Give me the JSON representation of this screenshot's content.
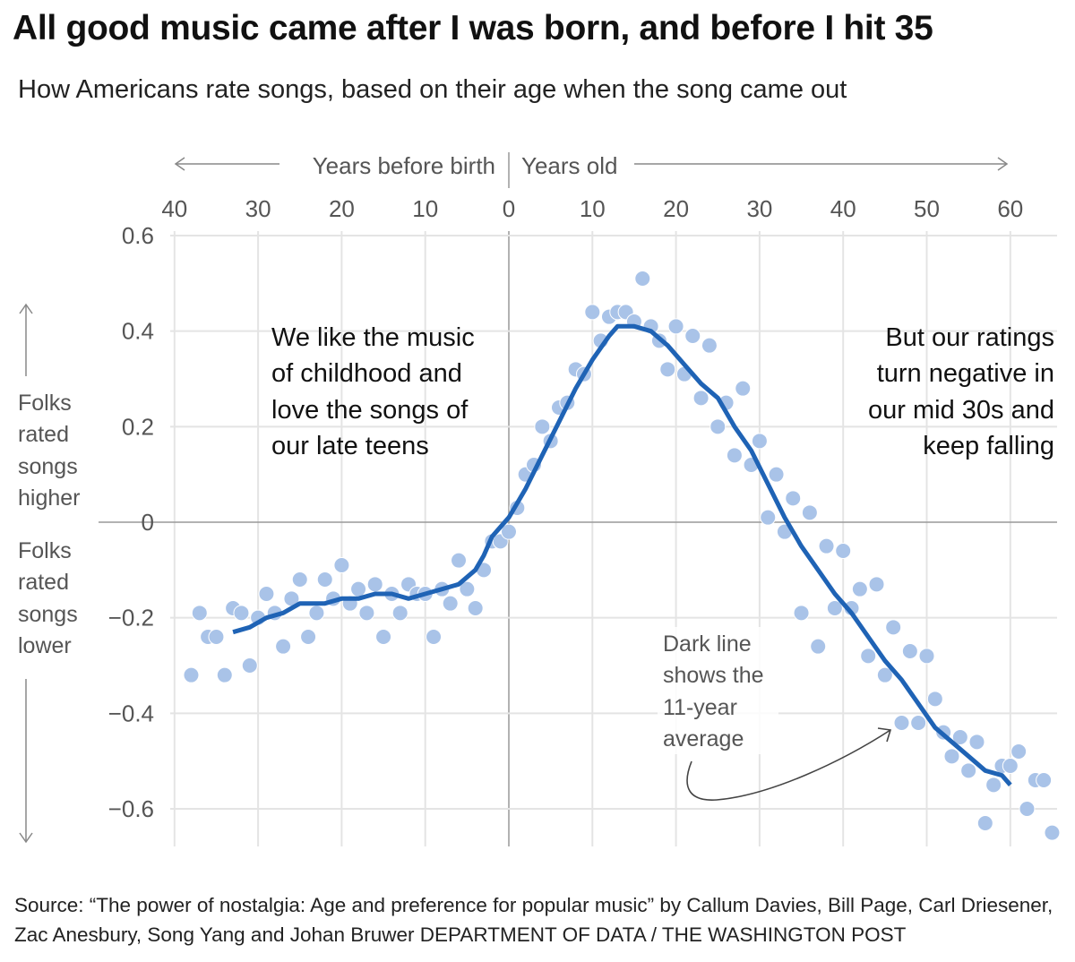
{
  "title": "All good music came after I was born, and before I hit 35",
  "subtitle": "How Americans rate songs, based on their age when the song came out",
  "source": "Source: “The power of nostalgia: Age and preference for popular music” by Callum Davies, Bill Page, Carl Driesener, Zac Anesbury, Song Yang and Johan Bruwer DEPARTMENT OF DATA / THE WASHINGTON POST",
  "colors": {
    "dots": "#a9c3e8",
    "line": "#1f63b5",
    "grid": "#e4e4e4",
    "zero": "#999999"
  },
  "chart_data": {
    "type": "scatter",
    "title": "All good music came after I was born, and before I hit 35",
    "x_header_left": "Years before birth",
    "x_header_right": "Years old",
    "x_tick_labels": [
      "40",
      "30",
      "20",
      "10",
      "0",
      "10",
      "20",
      "30",
      "40",
      "50",
      "60"
    ],
    "x_ticks": [
      -40,
      -30,
      -20,
      -10,
      0,
      10,
      20,
      30,
      40,
      50,
      60
    ],
    "y_tick_labels": [
      "0.6",
      "0.4",
      "0.2",
      "0",
      "−0.2",
      "−0.4",
      "−0.6"
    ],
    "y_ticks": [
      0.6,
      0.4,
      0.2,
      0,
      -0.2,
      -0.4,
      -0.6
    ],
    "xlim": [
      -40,
      65
    ],
    "ylim": [
      -0.68,
      0.6
    ],
    "grid": true,
    "y_label_up": [
      "Folks",
      "rated",
      "songs",
      "higher"
    ],
    "y_label_down": [
      "Folks",
      "rated",
      "songs",
      "lower"
    ],
    "annotations": {
      "left": [
        "We like the music",
        "of childhood and",
        "love the songs of",
        "our late teens"
      ],
      "right": [
        "But our ratings",
        "turn negative in",
        "our mid 30s and",
        "keep falling"
      ],
      "line_note": [
        "Dark line",
        "shows the",
        "11-year",
        "average"
      ]
    },
    "points": [
      [
        -38,
        -0.32
      ],
      [
        -37,
        -0.19
      ],
      [
        -36,
        -0.24
      ],
      [
        -35,
        -0.24
      ],
      [
        -34,
        -0.32
      ],
      [
        -33,
        -0.18
      ],
      [
        -32,
        -0.19
      ],
      [
        -31,
        -0.3
      ],
      [
        -30,
        -0.2
      ],
      [
        -29,
        -0.15
      ],
      [
        -28,
        -0.19
      ],
      [
        -27,
        -0.26
      ],
      [
        -26,
        -0.16
      ],
      [
        -25,
        -0.12
      ],
      [
        -24,
        -0.24
      ],
      [
        -23,
        -0.19
      ],
      [
        -22,
        -0.12
      ],
      [
        -21,
        -0.16
      ],
      [
        -20,
        -0.09
      ],
      [
        -19,
        -0.17
      ],
      [
        -18,
        -0.14
      ],
      [
        -17,
        -0.19
      ],
      [
        -16,
        -0.13
      ],
      [
        -15,
        -0.24
      ],
      [
        -14,
        -0.15
      ],
      [
        -13,
        -0.19
      ],
      [
        -12,
        -0.13
      ],
      [
        -11,
        -0.15
      ],
      [
        -10,
        -0.15
      ],
      [
        -9,
        -0.24
      ],
      [
        -8,
        -0.14
      ],
      [
        -7,
        -0.17
      ],
      [
        -6,
        -0.08
      ],
      [
        -5,
        -0.14
      ],
      [
        -4,
        -0.18
      ],
      [
        -3,
        -0.1
      ],
      [
        -2,
        -0.04
      ],
      [
        -1,
        -0.04
      ],
      [
        0,
        -0.02
      ],
      [
        1,
        0.03
      ],
      [
        2,
        0.1
      ],
      [
        3,
        0.12
      ],
      [
        4,
        0.2
      ],
      [
        5,
        0.17
      ],
      [
        6,
        0.24
      ],
      [
        7,
        0.25
      ],
      [
        8,
        0.32
      ],
      [
        9,
        0.31
      ],
      [
        10,
        0.44
      ],
      [
        11,
        0.38
      ],
      [
        12,
        0.43
      ],
      [
        13,
        0.44
      ],
      [
        14,
        0.44
      ],
      [
        15,
        0.42
      ],
      [
        16,
        0.51
      ],
      [
        17,
        0.41
      ],
      [
        18,
        0.38
      ],
      [
        19,
        0.32
      ],
      [
        20,
        0.41
      ],
      [
        21,
        0.31
      ],
      [
        22,
        0.39
      ],
      [
        23,
        0.26
      ],
      [
        24,
        0.37
      ],
      [
        25,
        0.2
      ],
      [
        26,
        0.25
      ],
      [
        27,
        0.14
      ],
      [
        28,
        0.28
      ],
      [
        29,
        0.12
      ],
      [
        30,
        0.17
      ],
      [
        31,
        0.01
      ],
      [
        32,
        0.1
      ],
      [
        33,
        -0.02
      ],
      [
        34,
        0.05
      ],
      [
        35,
        -0.19
      ],
      [
        36,
        0.02
      ],
      [
        37,
        -0.26
      ],
      [
        38,
        -0.05
      ],
      [
        39,
        -0.18
      ],
      [
        40,
        -0.06
      ],
      [
        41,
        -0.18
      ],
      [
        42,
        -0.14
      ],
      [
        43,
        -0.28
      ],
      [
        44,
        -0.13
      ],
      [
        45,
        -0.32
      ],
      [
        46,
        -0.22
      ],
      [
        47,
        -0.42
      ],
      [
        48,
        -0.27
      ],
      [
        49,
        -0.42
      ],
      [
        50,
        -0.28
      ],
      [
        51,
        -0.37
      ],
      [
        52,
        -0.44
      ],
      [
        53,
        -0.49
      ],
      [
        54,
        -0.45
      ],
      [
        55,
        -0.52
      ],
      [
        56,
        -0.46
      ],
      [
        57,
        -0.63
      ],
      [
        58,
        -0.55
      ],
      [
        59,
        -0.51
      ],
      [
        60,
        -0.51
      ],
      [
        61,
        -0.48
      ],
      [
        62,
        -0.6
      ],
      [
        63,
        -0.54
      ],
      [
        64,
        -0.54
      ],
      [
        65,
        -0.65
      ]
    ],
    "average_line": [
      [
        -33,
        -0.23
      ],
      [
        -31,
        -0.22
      ],
      [
        -29,
        -0.2
      ],
      [
        -27,
        -0.19
      ],
      [
        -25,
        -0.17
      ],
      [
        -22,
        -0.17
      ],
      [
        -20,
        -0.16
      ],
      [
        -18,
        -0.16
      ],
      [
        -16,
        -0.15
      ],
      [
        -14,
        -0.15
      ],
      [
        -12,
        -0.16
      ],
      [
        -10,
        -0.15
      ],
      [
        -8,
        -0.14
      ],
      [
        -6,
        -0.13
      ],
      [
        -4,
        -0.1
      ],
      [
        -3,
        -0.07
      ],
      [
        -2,
        -0.03
      ],
      [
        0,
        0.01
      ],
      [
        2,
        0.07
      ],
      [
        4,
        0.14
      ],
      [
        6,
        0.21
      ],
      [
        8,
        0.28
      ],
      [
        10,
        0.34
      ],
      [
        12,
        0.39
      ],
      [
        13,
        0.41
      ],
      [
        15,
        0.41
      ],
      [
        17,
        0.4
      ],
      [
        19,
        0.37
      ],
      [
        21,
        0.33
      ],
      [
        23,
        0.29
      ],
      [
        25,
        0.26
      ],
      [
        27,
        0.2
      ],
      [
        29,
        0.15
      ],
      [
        31,
        0.08
      ],
      [
        33,
        0.01
      ],
      [
        35,
        -0.05
      ],
      [
        37,
        -0.1
      ],
      [
        39,
        -0.15
      ],
      [
        41,
        -0.19
      ],
      [
        43,
        -0.24
      ],
      [
        45,
        -0.29
      ],
      [
        47,
        -0.33
      ],
      [
        49,
        -0.38
      ],
      [
        51,
        -0.43
      ],
      [
        53,
        -0.46
      ],
      [
        55,
        -0.49
      ],
      [
        57,
        -0.52
      ],
      [
        59,
        -0.53
      ],
      [
        60,
        -0.55
      ]
    ]
  }
}
